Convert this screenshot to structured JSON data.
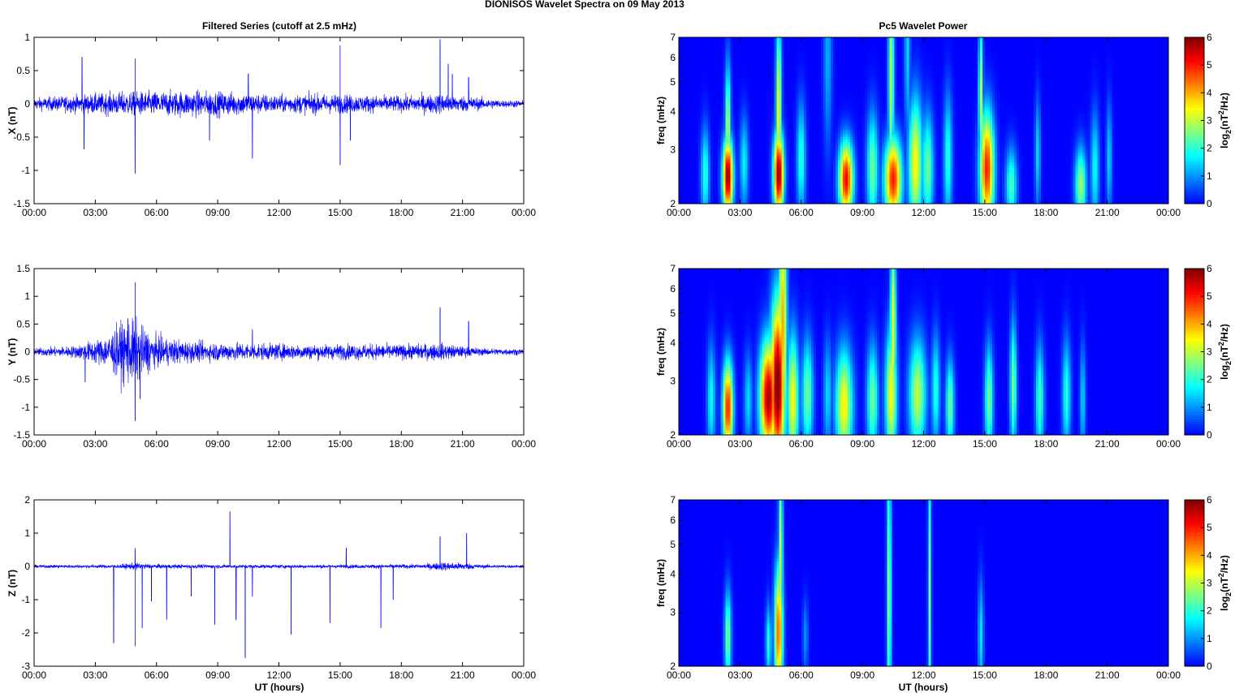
{
  "figure": {
    "title": "DIONISOS Wavelet Spectra on 09 May       2013",
    "left_title": "Filtered Series (cutoff at 2.5 mHz)",
    "right_title": "Pc5 Wavelet Power",
    "xlabel": "UT (hours)"
  },
  "colors": {
    "series": "#0000ff",
    "axes": "#000000",
    "background": "#ffffff"
  },
  "chart_data": [
    {
      "type": "line",
      "name": "X",
      "ylabel": "X (nT)",
      "x_ticks": [
        "00:00",
        "03:00",
        "06:00",
        "09:00",
        "12:00",
        "15:00",
        "18:00",
        "21:00",
        "00:00"
      ],
      "xlim": [
        0,
        24
      ],
      "ylim": [
        -1.5,
        1
      ],
      "y_ticks": [
        -1.5,
        -1,
        -0.5,
        0,
        0.5,
        1
      ],
      "noise_envelope": {
        "x": [
          0,
          2,
          4,
          6,
          8,
          10,
          12,
          14,
          16,
          18,
          20,
          22,
          23,
          24
        ],
        "amp": [
          0.08,
          0.12,
          0.16,
          0.17,
          0.18,
          0.16,
          0.12,
          0.14,
          0.12,
          0.11,
          0.14,
          0.08,
          0.05,
          0.05
        ]
      },
      "spikes": [
        {
          "x": 2.35,
          "y": 0.7
        },
        {
          "x": 2.45,
          "y": -0.68
        },
        {
          "x": 4.95,
          "y": 0.68
        },
        {
          "x": 4.95,
          "y": -1.05
        },
        {
          "x": 8.6,
          "y": -0.55
        },
        {
          "x": 10.7,
          "y": -0.82
        },
        {
          "x": 10.5,
          "y": 0.45
        },
        {
          "x": 15.0,
          "y": 0.88
        },
        {
          "x": 15.0,
          "y": -0.92
        },
        {
          "x": 15.5,
          "y": -0.55
        },
        {
          "x": 19.9,
          "y": 0.97
        },
        {
          "x": 20.3,
          "y": 0.6
        },
        {
          "x": 20.5,
          "y": 0.45
        },
        {
          "x": 21.3,
          "y": 0.4
        }
      ]
    },
    {
      "type": "line",
      "name": "Y",
      "ylabel": "Y (nT)",
      "x_ticks": [
        "00:00",
        "03:00",
        "06:00",
        "09:00",
        "12:00",
        "15:00",
        "18:00",
        "21:00",
        "00:00"
      ],
      "xlim": [
        0,
        24
      ],
      "ylim": [
        -1.5,
        1.5
      ],
      "y_ticks": [
        -1.5,
        -1,
        -0.5,
        0,
        0.5,
        1,
        1.5
      ],
      "noise_envelope": {
        "x": [
          0,
          2,
          3.5,
          4.5,
          5,
          6,
          8,
          10,
          12,
          14,
          16,
          18,
          20,
          21,
          22,
          24
        ],
        "amp": [
          0.06,
          0.1,
          0.25,
          0.55,
          0.5,
          0.25,
          0.16,
          0.15,
          0.13,
          0.12,
          0.13,
          0.12,
          0.14,
          0.09,
          0.06,
          0.05
        ]
      },
      "spikes": [
        {
          "x": 4.95,
          "y": 1.25
        },
        {
          "x": 4.95,
          "y": -1.25
        },
        {
          "x": 5.2,
          "y": -0.85
        },
        {
          "x": 4.6,
          "y": 0.6
        },
        {
          "x": 19.9,
          "y": 0.8
        },
        {
          "x": 21.3,
          "y": 0.55
        },
        {
          "x": 2.5,
          "y": -0.55
        },
        {
          "x": 10.7,
          "y": 0.4
        }
      ]
    },
    {
      "type": "line",
      "name": "Z",
      "ylabel": "Z (nT)",
      "x_ticks": [
        "00:00",
        "03:00",
        "06:00",
        "09:00",
        "12:00",
        "15:00",
        "18:00",
        "21:00",
        "00:00"
      ],
      "xlim": [
        0,
        24
      ],
      "ylim": [
        -3,
        2
      ],
      "y_ticks": [
        -3,
        -2,
        -1,
        0,
        1,
        2
      ],
      "noise_envelope": {
        "x": [
          0,
          4,
          5,
          6,
          9,
          12,
          15,
          19,
          20,
          21,
          22,
          24
        ],
        "amp": [
          0.04,
          0.05,
          0.1,
          0.06,
          0.05,
          0.05,
          0.05,
          0.06,
          0.12,
          0.1,
          0.05,
          0.04
        ]
      },
      "spikes": [
        {
          "x": 3.9,
          "y": -2.3
        },
        {
          "x": 4.95,
          "y": -2.4
        },
        {
          "x": 5.3,
          "y": -1.85
        },
        {
          "x": 5.75,
          "y": -1.05
        },
        {
          "x": 6.5,
          "y": -1.6
        },
        {
          "x": 7.7,
          "y": -0.9
        },
        {
          "x": 8.85,
          "y": -1.75
        },
        {
          "x": 9.6,
          "y": 1.65
        },
        {
          "x": 9.9,
          "y": -1.6
        },
        {
          "x": 10.35,
          "y": -2.75
        },
        {
          "x": 10.7,
          "y": -0.9
        },
        {
          "x": 12.6,
          "y": -2.05
        },
        {
          "x": 14.5,
          "y": -1.7
        },
        {
          "x": 17.0,
          "y": -1.85
        },
        {
          "x": 17.6,
          "y": -1.0
        },
        {
          "x": 19.9,
          "y": 0.9
        },
        {
          "x": 21.2,
          "y": 1.0
        },
        {
          "x": 15.3,
          "y": 0.55
        },
        {
          "x": 4.95,
          "y": 0.55
        }
      ]
    },
    {
      "type": "heatmap",
      "name": "X power",
      "ylabel": "freq (mHz)",
      "log_scale_y": true,
      "x_ticks": [
        "00:00",
        "03:00",
        "06:00",
        "09:00",
        "12:00",
        "15:00",
        "18:00",
        "21:00",
        "00:00"
      ],
      "xlim": [
        0,
        24
      ],
      "ylim": [
        2,
        7
      ],
      "y_ticks": [
        2,
        3,
        4,
        5,
        6,
        7
      ],
      "colorbar": {
        "label": "log2(nT2/Hz)",
        "range": [
          0,
          6
        ],
        "ticks": [
          0,
          1,
          2,
          3,
          4,
          5,
          6
        ]
      },
      "blobs": [
        [
          2.4,
          2.45,
          6.0,
          0.18,
          0.2
        ],
        [
          2.4,
          3.5,
          3.0,
          0.1,
          0.35
        ],
        [
          4.9,
          2.5,
          6.0,
          0.18,
          0.22
        ],
        [
          4.9,
          4.0,
          3.5,
          0.1,
          0.5
        ],
        [
          8.2,
          2.4,
          5.2,
          0.25,
          0.2
        ],
        [
          10.5,
          2.4,
          5.0,
          0.3,
          0.22
        ],
        [
          10.4,
          5.2,
          3.0,
          0.1,
          0.6
        ],
        [
          11.6,
          2.7,
          3.5,
          0.25,
          0.35
        ],
        [
          15.1,
          2.6,
          5.0,
          0.25,
          0.3
        ],
        [
          14.8,
          4.5,
          3.0,
          0.08,
          0.4
        ],
        [
          16.3,
          2.3,
          2.2,
          0.2,
          0.2
        ],
        [
          19.7,
          2.3,
          2.8,
          0.2,
          0.2
        ],
        [
          20.4,
          2.6,
          1.8,
          0.15,
          0.3
        ],
        [
          1.3,
          2.5,
          2.0,
          0.15,
          0.25
        ],
        [
          3.2,
          2.7,
          1.7,
          0.15,
          0.25
        ],
        [
          6.0,
          2.8,
          2.0,
          0.15,
          0.3
        ],
        [
          9.5,
          2.6,
          2.5,
          0.2,
          0.3
        ],
        [
          12.2,
          2.6,
          2.5,
          0.2,
          0.3
        ],
        [
          13.2,
          2.8,
          2.0,
          0.15,
          0.35
        ],
        [
          17.6,
          2.9,
          1.5,
          0.1,
          0.3
        ],
        [
          21.1,
          2.8,
          1.5,
          0.1,
          0.3
        ],
        [
          7.3,
          6.0,
          1.2,
          0.15,
          0.5
        ],
        [
          11.2,
          6.4,
          1.5,
          0.1,
          0.5
        ]
      ]
    },
    {
      "type": "heatmap",
      "name": "Y power",
      "ylabel": "freq (mHz)",
      "log_scale_y": true,
      "x_ticks": [
        "00:00",
        "03:00",
        "06:00",
        "09:00",
        "12:00",
        "15:00",
        "18:00",
        "21:00",
        "00:00"
      ],
      "xlim": [
        0,
        24
      ],
      "ylim": [
        2,
        7
      ],
      "y_ticks": [
        2,
        3,
        4,
        5,
        6,
        7
      ],
      "colorbar": {
        "label": "log2(nT2/Hz)",
        "range": [
          0,
          6
        ],
        "ticks": [
          0,
          1,
          2,
          3,
          4,
          5,
          6
        ]
      },
      "blobs": [
        [
          2.4,
          2.45,
          5.0,
          0.18,
          0.25
        ],
        [
          4.4,
          2.65,
          5.8,
          0.3,
          0.3
        ],
        [
          4.85,
          2.9,
          6.3,
          0.25,
          0.45
        ],
        [
          5.1,
          4.5,
          4.0,
          0.15,
          0.7
        ],
        [
          5.6,
          2.6,
          3.5,
          0.2,
          0.35
        ],
        [
          6.3,
          2.7,
          2.5,
          0.2,
          0.3
        ],
        [
          8.1,
          2.5,
          3.5,
          0.3,
          0.3
        ],
        [
          9.5,
          2.6,
          2.5,
          0.2,
          0.3
        ],
        [
          10.4,
          2.7,
          3.5,
          0.2,
          0.35
        ],
        [
          10.5,
          4.5,
          3.5,
          0.1,
          0.5
        ],
        [
          11.7,
          2.7,
          3.0,
          0.3,
          0.3
        ],
        [
          13.3,
          2.5,
          2.5,
          0.15,
          0.25
        ],
        [
          15.2,
          2.6,
          2.5,
          0.15,
          0.3
        ],
        [
          16.4,
          2.9,
          2.5,
          0.12,
          0.35
        ],
        [
          17.7,
          2.6,
          2.2,
          0.15,
          0.3
        ],
        [
          19.0,
          2.7,
          2.0,
          0.15,
          0.3
        ],
        [
          19.8,
          2.6,
          1.5,
          0.1,
          0.3
        ],
        [
          1.6,
          2.6,
          1.8,
          0.15,
          0.3
        ],
        [
          3.4,
          2.6,
          1.5,
          0.15,
          0.25
        ],
        [
          7.3,
          2.7,
          1.5,
          0.15,
          0.3
        ],
        [
          12.6,
          2.8,
          2.0,
          0.15,
          0.3
        ]
      ]
    },
    {
      "type": "heatmap",
      "name": "Z power",
      "ylabel": "freq (mHz)",
      "log_scale_y": true,
      "x_ticks": [
        "00:00",
        "03:00",
        "06:00",
        "09:00",
        "12:00",
        "15:00",
        "18:00",
        "21:00",
        "00:00"
      ],
      "xlim": [
        0,
        24
      ],
      "ylim": [
        2,
        7
      ],
      "y_ticks": [
        2,
        3,
        4,
        5,
        6,
        7
      ],
      "colorbar": {
        "label": "log2(nT2/Hz)",
        "range": [
          0,
          6
        ],
        "ticks": [
          0,
          1,
          2,
          3,
          4,
          5,
          6
        ]
      },
      "blobs": [
        [
          2.4,
          2.5,
          2.6,
          0.12,
          0.25
        ],
        [
          4.9,
          2.6,
          4.5,
          0.15,
          0.35
        ],
        [
          5.0,
          4.5,
          3.0,
          0.08,
          0.6
        ],
        [
          4.4,
          2.4,
          2.0,
          0.1,
          0.2
        ],
        [
          10.3,
          3.5,
          2.8,
          0.08,
          0.8
        ],
        [
          12.3,
          3.5,
          2.5,
          0.06,
          0.8
        ],
        [
          14.8,
          2.5,
          1.6,
          0.1,
          0.3
        ],
        [
          6.2,
          2.5,
          1.0,
          0.1,
          0.2
        ]
      ]
    }
  ]
}
